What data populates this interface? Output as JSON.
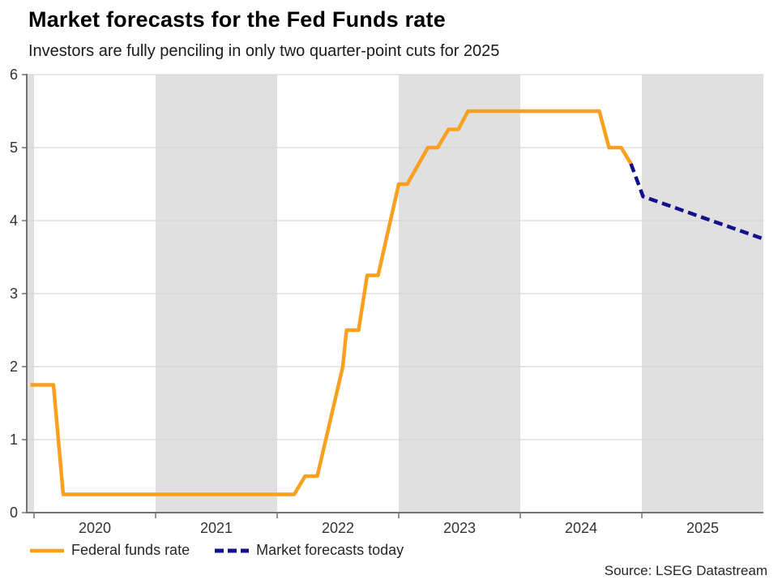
{
  "header": {
    "title": "Market forecasts for the Fed Funds rate",
    "subtitle": "Investors are fully penciling in only two quarter-point cuts for 2025"
  },
  "source": "Source: LSEG Datastream",
  "legend": [
    {
      "label": "Federal funds rate",
      "color": "#F9A11E",
      "style": "solid"
    },
    {
      "label": "Market forecasts today",
      "color": "#12128C",
      "style": "dashed"
    }
  ],
  "colors": {
    "fed_line": "#F9A11E",
    "forecast_line": "#12128C",
    "year_band": "#e0e0e0",
    "gridline": "#d2d2d2",
    "axis": "#737373",
    "tick_label": "#333333"
  },
  "chart_data": {
    "type": "line",
    "title": "Market forecasts for the Fed Funds rate",
    "subtitle": "Investors are fully penciling in only two quarter-point cuts for 2025",
    "xlabel": "",
    "ylabel": "",
    "x_range": [
      2019.94,
      2026.0
    ],
    "y_range": [
      0,
      6
    ],
    "y_ticks": [
      0,
      1,
      2,
      3,
      4,
      5,
      6
    ],
    "x_tick_years": [
      2020,
      2021,
      2022,
      2023,
      2024,
      2025
    ],
    "x_tick_labels": [
      "2020",
      "2021",
      "2022",
      "2023",
      "2024",
      "2025"
    ],
    "grid": "horizontal",
    "legend_position": "bottom-left",
    "shaded_year_bands": [
      [
        2019.94,
        2020.0
      ],
      [
        2021.0,
        2022.0
      ],
      [
        2023.0,
        2024.0
      ],
      [
        2025.0,
        2026.0
      ]
    ],
    "series": [
      {
        "name": "Federal funds rate",
        "style": "solid",
        "color": "#F9A11E",
        "points": [
          [
            2019.97,
            1.75
          ],
          [
            2020.16,
            1.75
          ],
          [
            2020.24,
            0.25
          ],
          [
            2022.14,
            0.25
          ],
          [
            2022.23,
            0.5
          ],
          [
            2022.33,
            0.5
          ],
          [
            2022.4,
            1.0
          ],
          [
            2022.54,
            2.0
          ],
          [
            2022.57,
            2.5
          ],
          [
            2022.67,
            2.5
          ],
          [
            2022.74,
            3.25
          ],
          [
            2022.83,
            3.25
          ],
          [
            2023.0,
            4.5
          ],
          [
            2023.07,
            4.5
          ],
          [
            2023.24,
            5.0
          ],
          [
            2023.32,
            5.0
          ],
          [
            2023.41,
            5.25
          ],
          [
            2023.49,
            5.25
          ],
          [
            2023.57,
            5.5
          ],
          [
            2024.65,
            5.5
          ],
          [
            2024.73,
            5.0
          ],
          [
            2024.83,
            5.0
          ],
          [
            2024.91,
            4.78
          ]
        ]
      },
      {
        "name": "Market forecasts today",
        "style": "dashed",
        "color": "#12128C",
        "points": [
          [
            2024.91,
            4.78
          ],
          [
            2025.01,
            4.33
          ],
          [
            2026.0,
            3.75
          ]
        ]
      }
    ]
  }
}
